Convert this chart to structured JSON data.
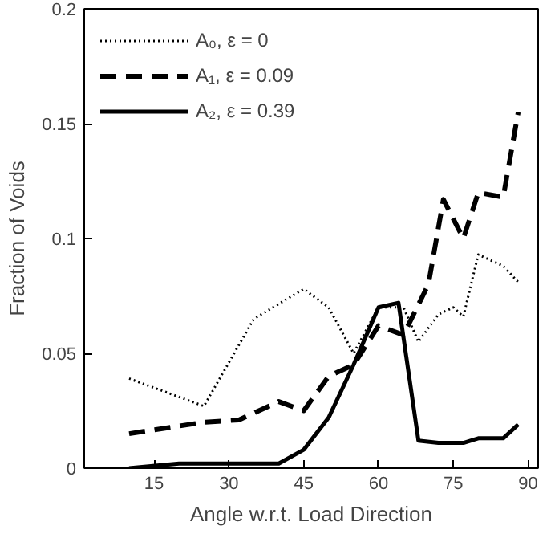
{
  "chart_data": {
    "type": "line",
    "xlabel": "Angle w.r.t. Load Direction",
    "ylabel": "Fraction of Voids",
    "xlim": [
      1,
      92
    ],
    "ylim": [
      0,
      0.2
    ],
    "xticks": [
      15,
      30,
      45,
      60,
      75,
      90
    ],
    "yticks": [
      0,
      0.05,
      0.1,
      0.15,
      0.2
    ],
    "grid": false,
    "legend": "top left",
    "marker": "none",
    "series": [
      {
        "name": "A₀, ε = 0",
        "color": "#000000",
        "line_style": "dotted",
        "x": [
          10,
          25,
          35,
          45,
          50,
          55,
          60,
          65,
          68,
          72,
          75,
          77,
          80,
          85,
          88
        ],
        "values": [
          0.039,
          0.027,
          0.065,
          0.078,
          0.07,
          0.05,
          0.07,
          0.07,
          0.055,
          0.067,
          0.07,
          0.066,
          0.093,
          0.088,
          0.081
        ]
      },
      {
        "name": "A₁, ε = 0.09",
        "color": "#000000",
        "line_style": "dashed",
        "x": [
          10,
          25,
          32,
          40,
          45,
          50,
          55,
          60,
          65,
          70,
          73,
          77,
          80,
          85,
          88
        ],
        "values": [
          0.015,
          0.02,
          0.021,
          0.029,
          0.025,
          0.04,
          0.045,
          0.062,
          0.058,
          0.08,
          0.117,
          0.1,
          0.12,
          0.118,
          0.155
        ]
      },
      {
        "name": "A₂, ε = 0.39",
        "color": "#000000",
        "line_style": "solid",
        "x": [
          10,
          20,
          40,
          45,
          50,
          55,
          60,
          64,
          68,
          72,
          77,
          80,
          85,
          88
        ],
        "values": [
          0,
          0.002,
          0.002,
          0.008,
          0.022,
          0.045,
          0.07,
          0.072,
          0.012,
          0.011,
          0.011,
          0.013,
          0.013,
          0.019
        ]
      }
    ]
  }
}
